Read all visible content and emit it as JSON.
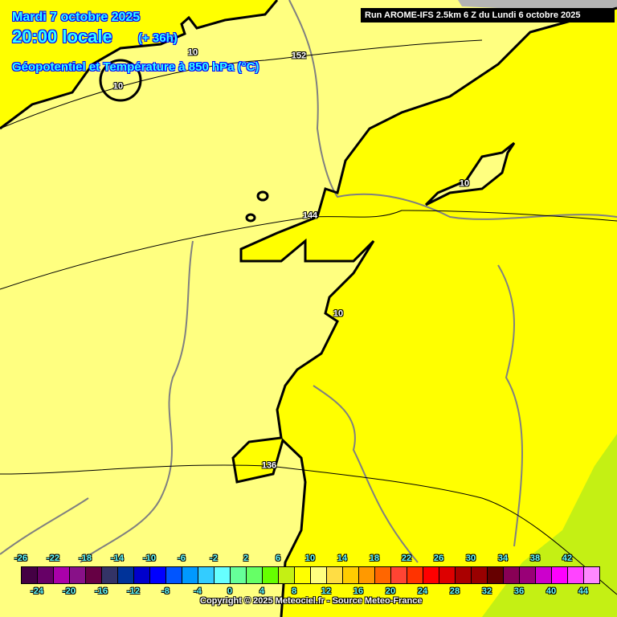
{
  "header": {
    "date": "Mardi 7 octobre 2025",
    "time": "20:00 locale",
    "lead": "(+ 36h)",
    "parameter": "Géopotentiel et Température à 850 hPa (°C)",
    "run": "Run AROME-IFS 2.5km 6 Z du Lundi 6 octobre 2025"
  },
  "map": {
    "colors": {
      "t10_12": "#ffff80",
      "t8_10": "#ffff00",
      "t6_8": "#c4f014",
      "nodata": "#b4b4b4",
      "border": "#808080",
      "contour": "#000000"
    },
    "contour_labels": [
      {
        "text": "10",
        "kind": "temperature"
      },
      {
        "text": "10",
        "kind": "temperature"
      },
      {
        "text": "10",
        "kind": "temperature"
      },
      {
        "text": "10",
        "kind": "temperature"
      },
      {
        "text": "152",
        "kind": "geopotential"
      },
      {
        "text": "144",
        "kind": "geopotential"
      },
      {
        "text": "136",
        "kind": "geopotential"
      }
    ]
  },
  "legend": {
    "unit": "°C",
    "colors": [
      "#440044",
      "#660066",
      "#aa00aa",
      "#881188",
      "#660044",
      "#333366",
      "#003399",
      "#0000cc",
      "#0000ff",
      "#0055ff",
      "#0099ff",
      "#33ccff",
      "#66ffff",
      "#66ff99",
      "#66ff66",
      "#66ff00",
      "#c4f014",
      "#ffff00",
      "#ffff80",
      "#ffdd44",
      "#ffcc00",
      "#ff9900",
      "#ff6600",
      "#ff4433",
      "#ff3300",
      "#ff0000",
      "#dd0000",
      "#aa0000",
      "#990000",
      "#660000",
      "#880055",
      "#990077",
      "#cc00cc",
      "#ff00ff",
      "#ff44ff",
      "#ff88ff"
    ],
    "top_labels": [
      "-26",
      "-22",
      "-18",
      "-14",
      "-10",
      "-6",
      "-2",
      "2",
      "6",
      "10",
      "14",
      "18",
      "22",
      "26",
      "30",
      "34",
      "38",
      "42"
    ],
    "bottom_labels": [
      "-24",
      "-20",
      "-16",
      "-12",
      "-8",
      "-4",
      "0",
      "4",
      "8",
      "12",
      "16",
      "20",
      "24",
      "28",
      "32",
      "36",
      "40",
      "44"
    ]
  },
  "footer": {
    "copyright": "Copyright © 2025 Meteociel.fr - Source Meteo-France"
  }
}
